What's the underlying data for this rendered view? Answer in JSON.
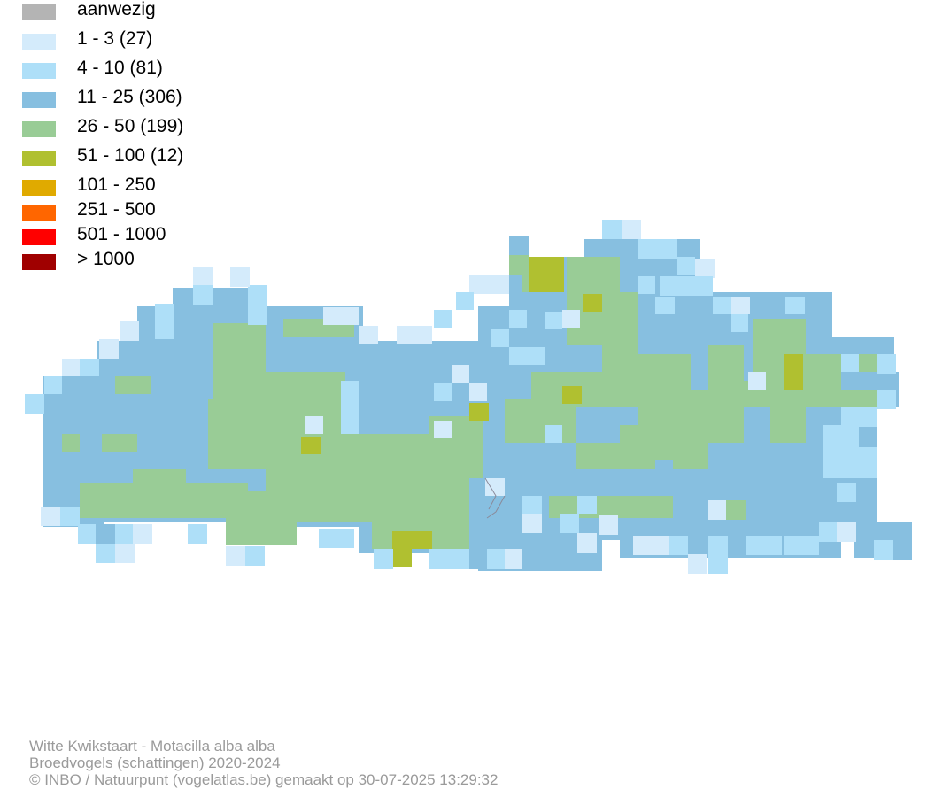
{
  "legend": {
    "items": [
      {
        "label": "aanwezig",
        "color": "#b4b4b4"
      },
      {
        "label": "1 - 3 (27)",
        "color": "#d4ebfb"
      },
      {
        "label": "4 - 10 (81)",
        "color": "#aedff8"
      },
      {
        "label": "11 - 25 (306)",
        "color": "#87bfe0"
      },
      {
        "label": "26 - 50 (199)",
        "color": "#99cc96"
      },
      {
        "label": "51 - 100 (12)",
        "color": "#b0c030"
      },
      {
        "label": "101 - 250",
        "color": "#e0aa00"
      },
      {
        "label": "251 - 500",
        "color": "#ff6600"
      },
      {
        "label": "501 - 1000",
        "color": "#ff0000"
      },
      {
        "label": "> 1000",
        "color": "#a00000"
      }
    ]
  },
  "footer": {
    "line1": "Witte Kwikstaart - Motacilla alba alba",
    "line2": "Broedvogels (schattingen) 2020-2024",
    "line3": "© INBO / Natuurpunt (vogelatlas.be) gemaakt op 30-07-2025 13:29:32"
  },
  "map": {
    "region": "Vlaanderen",
    "fill_colors": {
      "c1": "#d4ebfb",
      "c2": "#aedff8",
      "c3": "#87bfe0",
      "c4": "#99cc96",
      "c5": "#b0c030"
    }
  }
}
